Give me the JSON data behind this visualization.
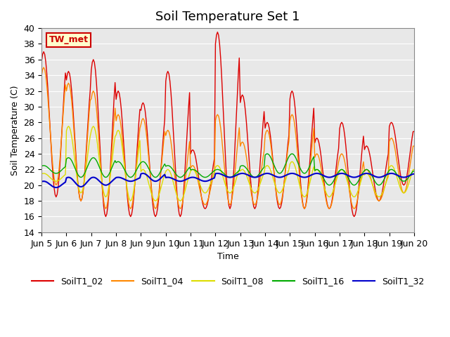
{
  "title": "Soil Temperature Set 1",
  "xlabel": "Time",
  "ylabel": "Soil Temperature (C)",
  "ylim": [
    14,
    40
  ],
  "xlim_days": [
    0,
    15
  ],
  "x_tick_labels": [
    "Jun 5",
    "Jun 6",
    "Jun 7",
    "Jun 8",
    "Jun 9",
    "Jun 10",
    "Jun 11",
    "Jun 12",
    "Jun 13",
    "Jun 14",
    "Jun 15",
    "Jun 16",
    "Jun 17",
    "Jun 18",
    "Jun 19",
    "Jun 20"
  ],
  "annotation_text": "TW_met",
  "annotation_bg": "#ffffcc",
  "annotation_fg": "#cc0000",
  "colors": {
    "SoilT1_02": "#dd0000",
    "SoilT1_04": "#ff8800",
    "SoilT1_08": "#dddd00",
    "SoilT1_16": "#00aa00",
    "SoilT1_32": "#0000cc"
  },
  "bg_color": "#e8e8e8",
  "title_fontsize": 13,
  "axis_fontsize": 9,
  "label_fontsize": 9
}
